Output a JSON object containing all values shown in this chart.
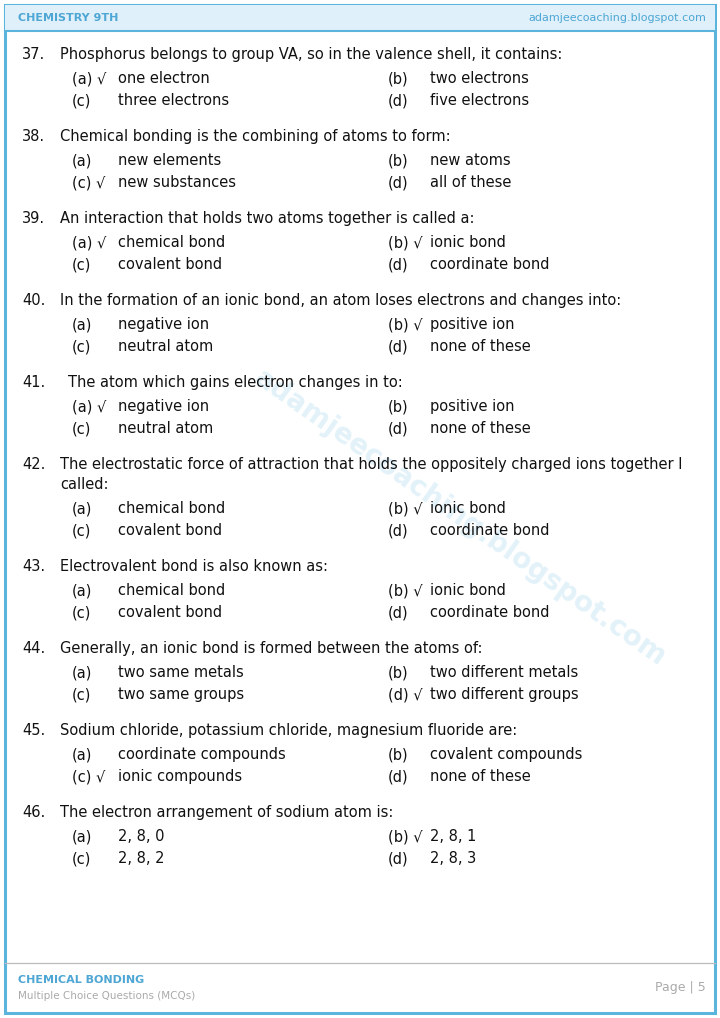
{
  "header_left": "CHEMISTRY 9TH",
  "header_right": "adamjeecoaching.blogspot.com",
  "header_color": "#4da6d4",
  "footer_left_title": "CHEMICAL BONDING",
  "footer_left_sub": "Multiple Choice Questions (MCQs)",
  "footer_right": "Page | 5",
  "border_color": "#5ab4dc",
  "bg_color": "#ffffff",
  "watermark": "adamjeecoaching.blogspot.com",
  "questions": [
    {
      "num": "37.",
      "question": "Phosphorus belongs to group VA, so in the valence shell, it contains:",
      "q2": "",
      "options": [
        {
          "label": "(a) √",
          "text": "one electron",
          "has_check": true
        },
        {
          "label": "(b)",
          "text": "two electrons",
          "has_check": false
        },
        {
          "label": "(c)",
          "text": "three electrons",
          "has_check": false
        },
        {
          "label": "(d)",
          "text": "five electrons",
          "has_check": false
        }
      ]
    },
    {
      "num": "38.",
      "question": "Chemical bonding is the combining of atoms to form:",
      "q2": "",
      "options": [
        {
          "label": "(a)",
          "text": "new elements",
          "has_check": false
        },
        {
          "label": "(b)",
          "text": "new atoms",
          "has_check": false
        },
        {
          "label": "(c) √",
          "text": "new substances",
          "has_check": true
        },
        {
          "label": "(d)",
          "text": "all of these",
          "has_check": false
        }
      ]
    },
    {
      "num": "39.",
      "question": "An interaction that holds two atoms together is called a:",
      "q2": "",
      "options": [
        {
          "label": "(a) √",
          "text": "chemical bond",
          "has_check": true
        },
        {
          "label": "(b) √",
          "text": "ionic bond",
          "has_check": true
        },
        {
          "label": "(c)",
          "text": "covalent bond",
          "has_check": false
        },
        {
          "label": "(d)",
          "text": "coordinate bond",
          "has_check": false
        }
      ]
    },
    {
      "num": "40.",
      "question": "In the formation of an ionic bond, an atom loses electrons and changes into:",
      "q2": "",
      "options": [
        {
          "label": "(a)",
          "text": "negative ion",
          "has_check": false
        },
        {
          "label": "(b) √",
          "text": "positive ion",
          "has_check": true
        },
        {
          "label": "(c)",
          "text": "neutral atom",
          "has_check": false
        },
        {
          "label": "(d)",
          "text": "none of these",
          "has_check": false
        }
      ]
    },
    {
      "num": "41.",
      "question": "The atom which gains electron changes in to:",
      "q2": "",
      "indent": true,
      "options": [
        {
          "label": "(a) √",
          "text": "negative ion",
          "has_check": true
        },
        {
          "label": "(b)",
          "text": "positive ion",
          "has_check": false
        },
        {
          "label": "(c)",
          "text": "neutral atom",
          "has_check": false
        },
        {
          "label": "(d)",
          "text": "none of these",
          "has_check": false
        }
      ]
    },
    {
      "num": "42.",
      "question": "The electrostatic force of attraction that holds the oppositely charged ions together I",
      "q2": "called:",
      "options": [
        {
          "label": "(a)",
          "text": "chemical bond",
          "has_check": false
        },
        {
          "label": "(b) √",
          "text": "ionic bond",
          "has_check": true
        },
        {
          "label": "(c)",
          "text": "covalent bond",
          "has_check": false
        },
        {
          "label": "(d)",
          "text": "coordinate bond",
          "has_check": false
        }
      ]
    },
    {
      "num": "43.",
      "question": "Electrovalent bond is also known as:",
      "q2": "",
      "options": [
        {
          "label": "(a)",
          "text": "chemical bond",
          "has_check": false
        },
        {
          "label": "(b) √",
          "text": "ionic bond",
          "has_check": true
        },
        {
          "label": "(c)",
          "text": "covalent bond",
          "has_check": false
        },
        {
          "label": "(d)",
          "text": "coordinate bond",
          "has_check": false
        }
      ]
    },
    {
      "num": "44.",
      "question": "Generally, an ionic bond is formed between the atoms of:",
      "q2": "",
      "options": [
        {
          "label": "(a)",
          "text": "two same metals",
          "has_check": false
        },
        {
          "label": "(b)",
          "text": "two different metals",
          "has_check": false
        },
        {
          "label": "(c)",
          "text": "two same groups",
          "has_check": false
        },
        {
          "label": "(d) √",
          "text": "two different groups",
          "has_check": true
        }
      ]
    },
    {
      "num": "45.",
      "question": "Sodium chloride, potassium chloride, magnesium fluoride are:",
      "q2": "",
      "options": [
        {
          "label": "(a)",
          "text": "coordinate compounds",
          "has_check": false
        },
        {
          "label": "(b)",
          "text": "covalent compounds",
          "has_check": false
        },
        {
          "label": "(c) √",
          "text": "ionic compounds",
          "has_check": true
        },
        {
          "label": "(d)",
          "text": "none of these",
          "has_check": false
        }
      ]
    },
    {
      "num": "46.",
      "question": "The electron arrangement of sodium atom is:",
      "q2": "",
      "options": [
        {
          "label": "(a)",
          "text": "2, 8, 0",
          "has_check": false
        },
        {
          "label": "(b) √",
          "text": "2, 8, 1",
          "has_check": true
        },
        {
          "label": "(c)",
          "text": "2, 8, 2",
          "has_check": false
        },
        {
          "label": "(d)",
          "text": "2, 8, 3",
          "has_check": false
        }
      ]
    }
  ]
}
